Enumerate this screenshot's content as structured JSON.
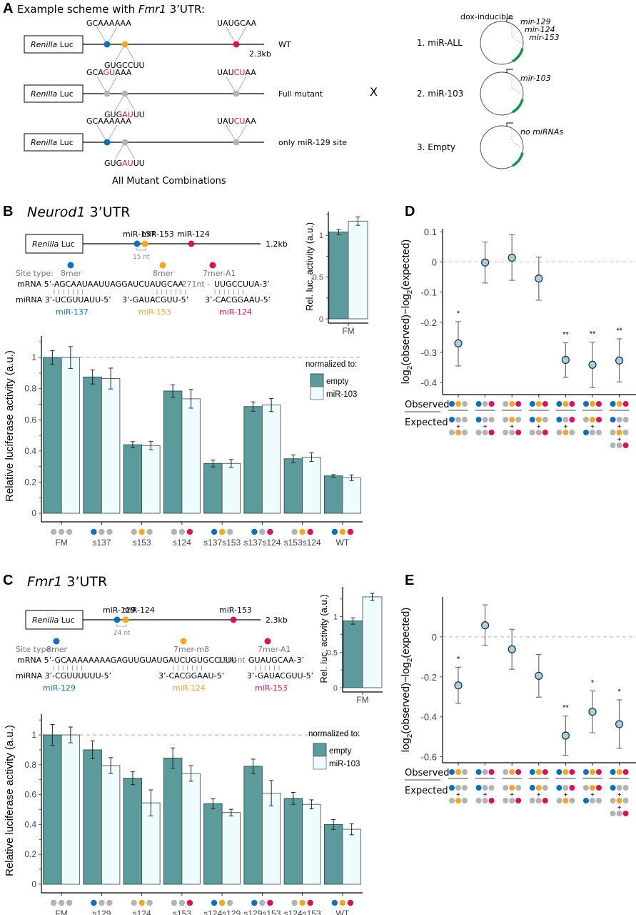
{
  "colors": {
    "blue": "#0f6fba",
    "orange": "#f5a623",
    "red": "#d6145a",
    "gray_site": "#b3b3b3",
    "bar_empty": "#5b9b9b",
    "bar_mir103": "#effcfd",
    "point_fill": "#a8cfdc",
    "green_insert": "#14944a",
    "mutation_red": "#d0202a"
  },
  "panelA": {
    "letter": "A",
    "title_prefix": "Example scheme with ",
    "title_gene": "Fmr1",
    "title_suffix": " 3’UTR:",
    "luc_label_italic": "Renilla",
    "luc_label_rest": " Luc",
    "length": "2.3kb",
    "constructs": [
      {
        "name": "WT",
        "site1_top": [
          "GCAAAAAA"
        ],
        "site2_bottom": [
          "GUGCCUU"
        ],
        "site3_top": [
          "UAUGCAA"
        ],
        "site_colors": [
          "blue",
          "orange",
          "red"
        ]
      },
      {
        "name": "Full mutant",
        "site1_top": [
          "GCA",
          "GU",
          "AAA"
        ],
        "site2_bottom": [
          "GUG",
          "AU",
          "UU"
        ],
        "site3_top": [
          "UAU",
          "CU",
          "AA"
        ],
        "site_colors": [
          "gray",
          "gray",
          "gray"
        ]
      },
      {
        "name": "only miR-129 site",
        "site1_top": [
          "GCAAAAAA"
        ],
        "site2_bottom": [
          "GUG",
          "AU",
          "UU"
        ],
        "site3_top": [
          "UAU",
          "CU",
          "AA"
        ],
        "site_colors": [
          "blue",
          "gray",
          "gray"
        ]
      }
    ],
    "footer": "All Mutant Combinations",
    "cross": "X",
    "plasmid_header": "dox-inducible",
    "plasmids": [
      {
        "label": "1. miR-ALL",
        "inserts": [
          "mir-129",
          "mir-124",
          "mir-153"
        ]
      },
      {
        "label": "2. miR-103",
        "inserts": [
          "mir-103"
        ]
      },
      {
        "label": "3. Empty",
        "inserts": [
          "no miRNAs"
        ]
      }
    ]
  },
  "panelB": {
    "letter": "B",
    "gene": "Neurod1",
    "title_suffix": " 3’UTR",
    "length": "1.2kb",
    "site_labels": [
      "miR-137",
      "miR-153",
      "miR-124"
    ],
    "spacing": "15 nt",
    "site_type_label": "Site type:",
    "site_types": [
      "8mer",
      "8mer",
      "7mer-A1"
    ],
    "mrna_prefix": "mRNA 5’-",
    "mrna_seq": "AGCAAUAAUUAGGAUCUAUGCAA",
    "gap": "- 271nt -",
    "mrna_end": "UUGCCUUA-3’",
    "mirna_prefix": "miRNA 3’-",
    "mirna1": "UCGUUAUU-5’",
    "mirna2": "3’-GAUACGUU-5’",
    "mirna3": "3’-CACGGAAU-5’",
    "mirna_names": [
      "miR-137",
      "miR-153",
      "miR-124"
    ]
  },
  "panelC": {
    "letter": "C",
    "gene": "Fmr1",
    "title_suffix": " 3’UTR",
    "length": "2.3kb",
    "site_labels": [
      "miR-129",
      "miR-124",
      "miR-153"
    ],
    "spacing": "24 nt",
    "site_type_label": "Site type:",
    "site_types": [
      "8mer",
      "7mer-m8",
      "7mer-A1"
    ],
    "mrna_prefix": "mRNA 5’-",
    "mrna_seq": "GCAAAAAAAAGAGUUGUAUGAUCUGUGCCUUU",
    "gap": "- 1204nt -",
    "mrna_end": "GUAUGCAA-3’",
    "mirna_prefix": "miRNA 3’-",
    "mirna1": "CGUUUUUU-5’",
    "mirna2": "3’-CACGGAAU-5’",
    "mirna3": "3’-GAUACGUU-5’",
    "mirna_names": [
      "miR-129",
      "miR-124",
      "miR-153"
    ]
  },
  "panelD": {
    "letter": "D"
  },
  "panelE": {
    "letter": "E"
  },
  "chart_data": [
    {
      "id": "B-inset",
      "type": "bar",
      "ylabel": "Rel. luc. activity (a.u.)",
      "categories": [
        "FM"
      ],
      "series": [
        {
          "name": "empty",
          "values": [
            1.04
          ],
          "errors": [
            0.03
          ]
        },
        {
          "name": "miR-103",
          "values": [
            1.17
          ],
          "errors": [
            0.05
          ]
        }
      ],
      "ylim": [
        0,
        1.25
      ],
      "yticks": [
        "0",
        "0.5",
        "1"
      ]
    },
    {
      "id": "B-main",
      "type": "bar",
      "ylabel": "Relative luciferase activity (a.u.)",
      "categories": [
        "FM",
        "s137",
        "s153",
        "s124",
        "s137s153",
        "s137s124",
        "s153s124",
        "WT"
      ],
      "category_sites": [
        [
          "g",
          "g",
          "g"
        ],
        [
          "b",
          "g",
          "g"
        ],
        [
          "g",
          "o",
          "g"
        ],
        [
          "g",
          "g",
          "r"
        ],
        [
          "b",
          "o",
          "g"
        ],
        [
          "b",
          "g",
          "r"
        ],
        [
          "g",
          "o",
          "r"
        ],
        [
          "b",
          "o",
          "r"
        ]
      ],
      "series": [
        {
          "name": "empty",
          "values": [
            1.0,
            0.875,
            0.44,
            0.785,
            0.32,
            0.685,
            0.35,
            0.24
          ],
          "errors": [
            0.045,
            0.045,
            0.02,
            0.04,
            0.022,
            0.03,
            0.025,
            0.008
          ]
        },
        {
          "name": "miR-103",
          "values": [
            1.0,
            0.865,
            0.435,
            0.735,
            0.32,
            0.695,
            0.36,
            0.228
          ],
          "errors": [
            0.07,
            0.067,
            0.027,
            0.06,
            0.025,
            0.042,
            0.028,
            0.018
          ]
        }
      ],
      "ylim": [
        0,
        1.12
      ],
      "yticks": [
        "0",
        "0.2",
        "0.4",
        "0.6",
        "0.8",
        "1"
      ],
      "reference_line": 1,
      "legend_title": "normalized to:",
      "legend_position": "top-right"
    },
    {
      "id": "C-inset",
      "type": "bar",
      "ylabel": "Rel. luc. activity (a.u.)",
      "categories": [
        "FM"
      ],
      "series": [
        {
          "name": "empty",
          "values": [
            0.94
          ],
          "errors": [
            0.045
          ]
        },
        {
          "name": "miR-103",
          "values": [
            1.28
          ],
          "errors": [
            0.05
          ]
        }
      ],
      "ylim": [
        0,
        1.38
      ],
      "yticks": [
        "0",
        "0.5",
        "1"
      ]
    },
    {
      "id": "C-main",
      "type": "bar",
      "ylabel": "Relative luciferase activity (a.u.)",
      "categories": [
        "FM",
        "s129",
        "s124",
        "s153",
        "s124s129",
        "s129s153",
        "s124s153",
        "WT"
      ],
      "category_sites": [
        [
          "g",
          "g",
          "g"
        ],
        [
          "b",
          "g",
          "g"
        ],
        [
          "g",
          "o",
          "g"
        ],
        [
          "g",
          "g",
          "r"
        ],
        [
          "b",
          "o",
          "g"
        ],
        [
          "b",
          "g",
          "r"
        ],
        [
          "g",
          "o",
          "r"
        ],
        [
          "b",
          "o",
          "r"
        ]
      ],
      "series": [
        {
          "name": "empty",
          "values": [
            1.0,
            0.9,
            0.71,
            0.845,
            0.54,
            0.79,
            0.575,
            0.4
          ],
          "errors": [
            0.07,
            0.06,
            0.043,
            0.068,
            0.033,
            0.048,
            0.04,
            0.033
          ]
        },
        {
          "name": "miR-103",
          "values": [
            1.0,
            0.795,
            0.545,
            0.742,
            0.48,
            0.61,
            0.535,
            0.368
          ],
          "errors": [
            0.053,
            0.053,
            0.087,
            0.052,
            0.022,
            0.085,
            0.03,
            0.037
          ]
        }
      ],
      "ylim": [
        0,
        1.12
      ],
      "yticks": [
        "0",
        "0.2",
        "0.4",
        "0.6",
        "0.8",
        "1"
      ],
      "reference_line": 1,
      "legend_title": "normalized to:",
      "legend_position": "top-right"
    },
    {
      "id": "D",
      "type": "scatter",
      "ylabel": "log2(observed)−log2(expected)",
      "ylim": [
        -0.44,
        0.11
      ],
      "yticks": [
        "0.1",
        "0",
        "-0.1",
        "-0.2",
        "-0.3",
        "-0.4"
      ],
      "reference_line": 0,
      "row_labels": [
        "Observed",
        "Expected"
      ],
      "points": [
        {
          "y": -0.27,
          "lo": -0.345,
          "hi": -0.198,
          "sig": "*"
        },
        {
          "y": -0.002,
          "lo": -0.07,
          "hi": 0.066,
          "sig": ""
        },
        {
          "y": 0.014,
          "lo": -0.061,
          "hi": 0.09,
          "sig": ""
        },
        {
          "y": -0.055,
          "lo": -0.127,
          "hi": 0.016,
          "sig": ""
        },
        {
          "y": -0.325,
          "lo": -0.383,
          "hi": -0.268,
          "sig": "**"
        },
        {
          "y": -0.341,
          "lo": -0.417,
          "hi": -0.266,
          "sig": "**"
        },
        {
          "y": -0.327,
          "lo": -0.398,
          "hi": -0.255,
          "sig": "**"
        }
      ],
      "observed": [
        [
          "b",
          "o",
          "g"
        ],
        [
          "b",
          "g",
          "r"
        ],
        [
          "g",
          "o",
          "r"
        ],
        [
          "b",
          "o",
          "r"
        ],
        [
          "b",
          "o",
          "r"
        ],
        [
          "b",
          "o",
          "r"
        ],
        [
          "b",
          "o",
          "r"
        ]
      ],
      "expected": [
        [
          [
            "b",
            "g",
            "g"
          ],
          [
            "g",
            "o",
            "g"
          ]
        ],
        [
          [
            "b",
            "g",
            "g"
          ],
          [
            "g",
            "g",
            "r"
          ]
        ],
        [
          [
            "g",
            "o",
            "g"
          ],
          [
            "g",
            "g",
            "r"
          ]
        ],
        [
          [
            "b",
            "o",
            "g"
          ],
          [
            "g",
            "g",
            "r"
          ]
        ],
        [
          [
            "b",
            "g",
            "r"
          ],
          [
            "g",
            "o",
            "g"
          ]
        ],
        [
          [
            "g",
            "o",
            "r"
          ],
          [
            "b",
            "g",
            "g"
          ]
        ],
        [
          [
            "b",
            "g",
            "g"
          ],
          [
            "g",
            "o",
            "g"
          ],
          [
            "g",
            "g",
            "r"
          ]
        ]
      ]
    },
    {
      "id": "E",
      "type": "scatter",
      "ylabel": "log2(observed)−log2(expected)",
      "ylim": [
        -0.63,
        0.2
      ],
      "yticks": [
        "0",
        "-0.2",
        "-0.4",
        "-0.6"
      ],
      "reference_line": 0,
      "row_labels": [
        "Observed",
        "Expected"
      ],
      "points": [
        {
          "y": -0.243,
          "lo": -0.333,
          "hi": -0.152,
          "sig": "*"
        },
        {
          "y": 0.058,
          "lo": -0.044,
          "hi": 0.16,
          "sig": ""
        },
        {
          "y": -0.062,
          "lo": -0.162,
          "hi": 0.038,
          "sig": ""
        },
        {
          "y": -0.195,
          "lo": -0.302,
          "hi": -0.088,
          "sig": ""
        },
        {
          "y": -0.494,
          "lo": -0.593,
          "hi": -0.396,
          "sig": "**"
        },
        {
          "y": -0.375,
          "lo": -0.48,
          "hi": -0.27,
          "sig": "*"
        },
        {
          "y": -0.437,
          "lo": -0.558,
          "hi": -0.315,
          "sig": "*"
        }
      ],
      "observed": [
        [
          "b",
          "o",
          "g"
        ],
        [
          "b",
          "g",
          "r"
        ],
        [
          "g",
          "o",
          "r"
        ],
        [
          "b",
          "o",
          "r"
        ],
        [
          "b",
          "o",
          "r"
        ],
        [
          "b",
          "o",
          "r"
        ],
        [
          "b",
          "o",
          "r"
        ]
      ],
      "expected": [
        [
          [
            "b",
            "g",
            "g"
          ],
          [
            "g",
            "o",
            "g"
          ]
        ],
        [
          [
            "b",
            "g",
            "g"
          ],
          [
            "g",
            "g",
            "r"
          ]
        ],
        [
          [
            "g",
            "o",
            "g"
          ],
          [
            "g",
            "g",
            "r"
          ]
        ],
        [
          [
            "b",
            "o",
            "g"
          ],
          [
            "g",
            "g",
            "r"
          ]
        ],
        [
          [
            "b",
            "g",
            "r"
          ],
          [
            "g",
            "o",
            "g"
          ]
        ],
        [
          [
            "g",
            "o",
            "r"
          ],
          [
            "b",
            "g",
            "g"
          ]
        ],
        [
          [
            "b",
            "g",
            "g"
          ],
          [
            "g",
            "o",
            "g"
          ],
          [
            "g",
            "g",
            "r"
          ]
        ]
      ]
    }
  ]
}
